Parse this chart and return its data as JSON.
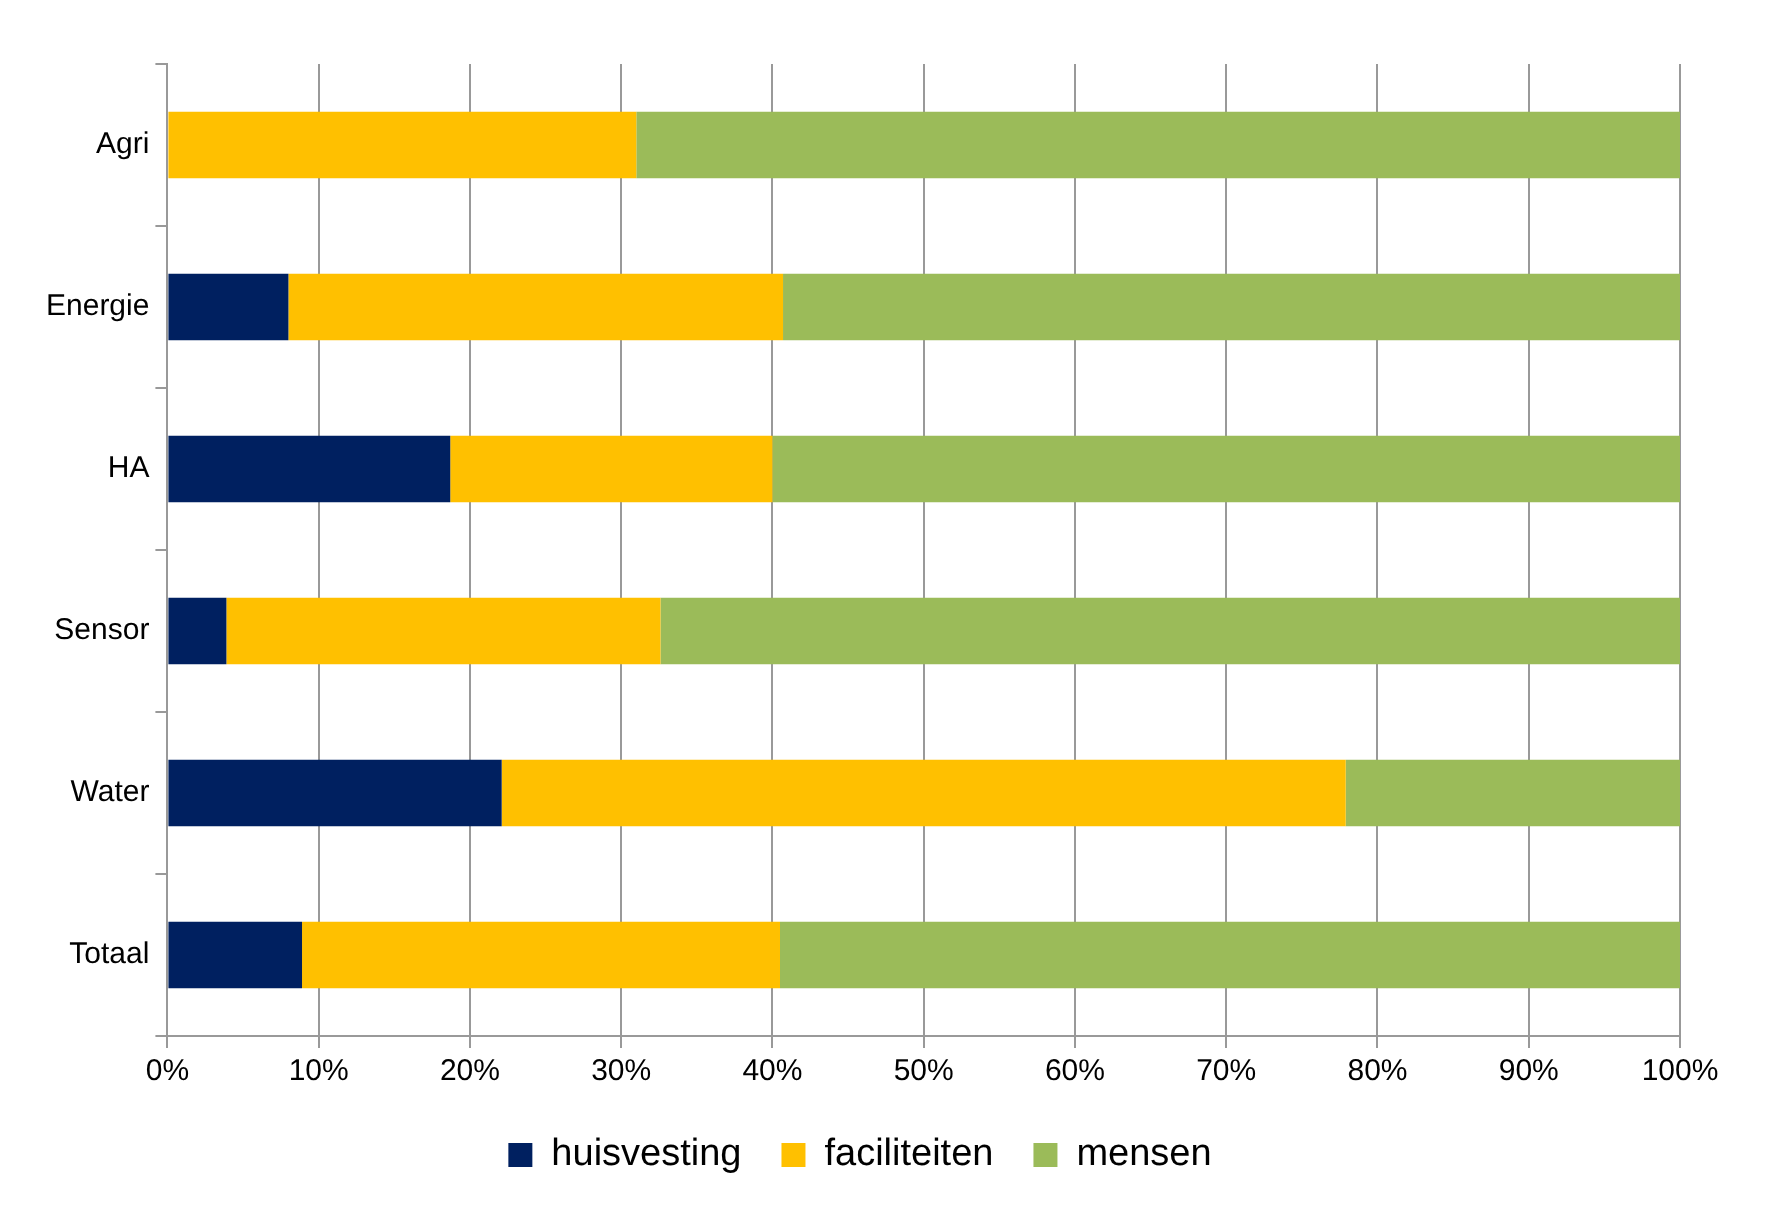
{
  "chart_data": {
    "type": "bar",
    "orientation": "horizontal",
    "stacked": true,
    "categories": [
      "Agri",
      "Energie",
      "HA",
      "Sensor",
      "Water",
      "Totaal"
    ],
    "series": [
      {
        "name": "huisvesting",
        "color": "#002060",
        "values": [
          0,
          8.0,
          18.7,
          3.9,
          22.1,
          8.9
        ]
      },
      {
        "name": "faciliteiten",
        "color": "#ffc000",
        "values": [
          31.0,
          32.7,
          21.3,
          28.7,
          55.8,
          31.6
        ]
      },
      {
        "name": "mensen",
        "color": "#9bbb59",
        "values": [
          69.0,
          59.3,
          60.0,
          67.4,
          22.1,
          59.5
        ]
      }
    ],
    "xlim": [
      0,
      100
    ],
    "xticks": [
      {
        "value": 0,
        "label": "0%"
      },
      {
        "value": 10,
        "label": "10%"
      },
      {
        "value": 20,
        "label": "20%"
      },
      {
        "value": 30,
        "label": "30%"
      },
      {
        "value": 40,
        "label": "40%"
      },
      {
        "value": 50,
        "label": "50%"
      },
      {
        "value": 60,
        "label": "60%"
      },
      {
        "value": 70,
        "label": "70%"
      },
      {
        "value": 80,
        "label": "80%"
      },
      {
        "value": 90,
        "label": "90%"
      },
      {
        "value": 100,
        "label": "100%"
      }
    ],
    "grid": "x",
    "legend": "bottom"
  }
}
